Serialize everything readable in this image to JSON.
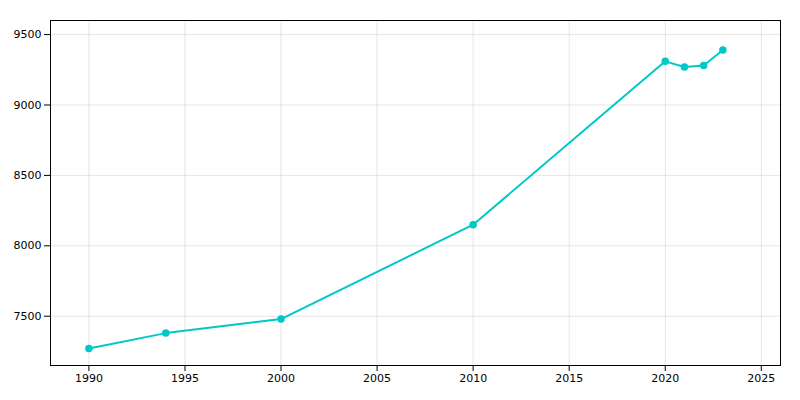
{
  "chart_data": {
    "type": "line",
    "x": [
      1990,
      1994,
      2000,
      2010,
      2020,
      2021,
      2022,
      2023
    ],
    "values": [
      7270,
      7380,
      7480,
      8150,
      9310,
      9270,
      9280,
      9390
    ],
    "color": "#00C8C8",
    "marker": "o",
    "xlim": [
      1988,
      2026
    ],
    "ylim": [
      7150,
      9600
    ],
    "xticks": [
      1990,
      1995,
      2000,
      2005,
      2010,
      2015,
      2020,
      2025
    ],
    "yticks": [
      7500,
      8000,
      8500,
      9000,
      9500
    ],
    "grid": true
  }
}
